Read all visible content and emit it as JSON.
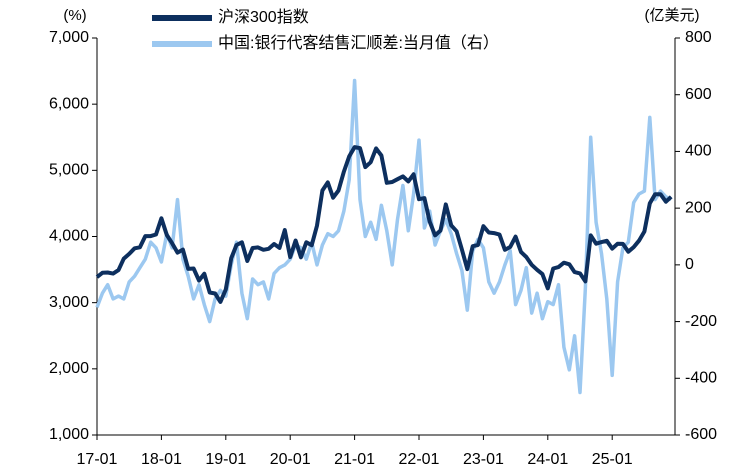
{
  "chart_data": {
    "type": "line",
    "y_unit": "(%)",
    "y2_unit": "(亿美元)",
    "categories": [
      "17-01",
      null,
      null,
      null,
      null,
      null,
      null,
      null,
      null,
      null,
      null,
      null,
      "18-01",
      null,
      null,
      null,
      null,
      null,
      null,
      null,
      null,
      null,
      null,
      null,
      "19-01",
      null,
      null,
      null,
      null,
      null,
      null,
      null,
      null,
      null,
      null,
      null,
      "20-01",
      null,
      null,
      null,
      null,
      null,
      null,
      null,
      null,
      null,
      null,
      null,
      "21-01",
      null,
      null,
      null,
      null,
      null,
      null,
      null,
      null,
      null,
      null,
      null,
      "22-01",
      null,
      null,
      null,
      null,
      null,
      null,
      null,
      null,
      null,
      null,
      null,
      "23-01",
      null,
      null,
      null,
      null,
      null,
      null,
      null,
      null,
      null,
      null,
      null,
      "24-01",
      null,
      null,
      null,
      null,
      null,
      null,
      null,
      null,
      null,
      null,
      null,
      "25-01",
      null,
      null,
      null,
      null,
      null,
      null,
      null,
      null,
      null,
      null,
      null
    ],
    "series": [
      {
        "name": "沪深300指数",
        "color": "#0d2f5e",
        "axis": "y",
        "values": [
          3387,
          3452,
          3456,
          3439,
          3492,
          3666,
          3737,
          3822,
          3837,
          4006,
          4006,
          4030,
          4275,
          4023,
          3899,
          3756,
          3802,
          3510,
          3517,
          3335,
          3438,
          3153,
          3138,
          3011,
          3201,
          3670,
          3872,
          3913,
          3630,
          3826,
          3835,
          3799,
          3814,
          3886,
          3828,
          4097,
          3688,
          3940,
          3686,
          3912,
          3867,
          4164,
          4695,
          4817,
          4587,
          4695,
          4981,
          5211,
          5351,
          5336,
          5049,
          5123,
          5331,
          5224,
          4811,
          4824,
          4866,
          4908,
          4833,
          4940,
          4564,
          4581,
          4223,
          4016,
          4091,
          4485,
          4170,
          4079,
          3804,
          3508,
          3854,
          3871,
          4156,
          4061,
          4051,
          4029,
          3799,
          3842,
          3998,
          3765,
          3690,
          3573,
          3497,
          3431,
          3216,
          3516,
          3537,
          3604,
          3580,
          3462,
          3442,
          3321,
          4017,
          3891,
          3916,
          3935,
          3817,
          3890,
          3888,
          3770,
          3840,
          3936,
          4075,
          4500,
          4640,
          4640,
          4526,
          4600
        ]
      },
      {
        "name": "中国:银行代客结售汇顺差:当月值（右）",
        "color": "#9cc8f0",
        "axis": "y2",
        "values": [
          -150,
          -100,
          -70,
          -120,
          -110,
          -120,
          -60,
          -40,
          -10,
          20,
          80,
          60,
          10,
          110,
          60,
          230,
          20,
          -40,
          -120,
          -70,
          -140,
          -200,
          -120,
          -90,
          -110,
          0,
          80,
          -100,
          -190,
          -50,
          -70,
          -60,
          -120,
          -30,
          -10,
          0,
          20,
          70,
          60,
          20,
          80,
          0,
          70,
          110,
          100,
          120,
          190,
          300,
          650,
          230,
          100,
          150,
          90,
          210,
          120,
          0,
          160,
          280,
          120,
          250,
          440,
          130,
          190,
          70,
          120,
          160,
          110,
          40,
          -20,
          -160,
          50,
          90,
          60,
          -60,
          -100,
          -60,
          0,
          50,
          -140,
          -90,
          -10,
          -170,
          -100,
          -190,
          -130,
          -140,
          -70,
          -290,
          -370,
          -250,
          -450,
          -80,
          450,
          150,
          40,
          -120,
          -390,
          -60,
          60,
          80,
          220,
          250,
          260,
          520,
          230,
          260,
          240,
          230
        ]
      }
    ],
    "ylim": [
      1000,
      7000
    ],
    "yticks": [
      {
        "value": 1000,
        "label": "1,000"
      },
      {
        "value": 2000,
        "label": "2,000"
      },
      {
        "value": 3000,
        "label": "3,000"
      },
      {
        "value": 4000,
        "label": "4,000"
      },
      {
        "value": 5000,
        "label": "5,000"
      },
      {
        "value": 6000,
        "label": "6,000"
      },
      {
        "value": 7000,
        "label": "7,000"
      }
    ],
    "y2lim": [
      -600,
      800
    ],
    "y2ticks": [
      -600,
      -400,
      -200,
      0,
      200,
      400,
      600,
      800
    ],
    "grid": false
  }
}
